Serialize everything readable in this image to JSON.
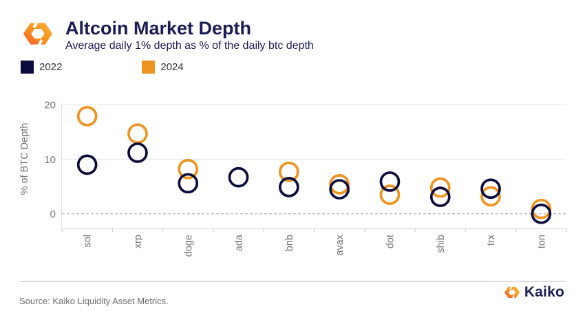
{
  "header": {
    "title": "Altcoin Market Depth",
    "subtitle": "Average daily 1% depth as % of the daily btc depth"
  },
  "legend": {
    "items": [
      {
        "label": "2022",
        "color": "#0d0d3d"
      },
      {
        "label": "2024",
        "color": "#ee9420"
      }
    ]
  },
  "footer": {
    "source": "Source: Kaiko Liquidity Asset Metrics.",
    "brand": "Kaiko"
  },
  "icons": {
    "header_logo": "kaiko-hex-logo",
    "footer_logo": "kaiko-hex-logo"
  },
  "colors": {
    "navy": "#0d0d3d",
    "orange": "#ee9420",
    "title_navy": "#1b1b55",
    "axis_text": "#757575",
    "gridline": "#ececec",
    "zero_line": "#b8b8b8"
  },
  "chart_data": {
    "type": "scatter",
    "title": "Altcoin Market Depth",
    "subtitle": "Average daily 1% depth as % of the daily btc depth",
    "categories": [
      "sol",
      "xrp",
      "doge",
      "ada",
      "bnb",
      "avax",
      "dot",
      "shib",
      "trx",
      "ton"
    ],
    "series": [
      {
        "name": "2022",
        "color": "#0d0d3d",
        "values": [
          9.0,
          11.2,
          5.6,
          6.7,
          4.9,
          4.5,
          5.9,
          3.1,
          4.6,
          0.0
        ]
      },
      {
        "name": "2024",
        "color": "#ee9420",
        "values": [
          17.9,
          14.7,
          8.2,
          null,
          7.7,
          5.4,
          3.5,
          4.8,
          3.2,
          0.9
        ]
      }
    ],
    "xlabel": "",
    "ylabel": "% of BTC Depth",
    "yticks": [
      0,
      10,
      20
    ],
    "ylim": [
      -2.8,
      21.7
    ],
    "grid": "horizontal",
    "zero_line_style": "dashed",
    "legend_position": "top-left",
    "marker": "open-circle"
  }
}
